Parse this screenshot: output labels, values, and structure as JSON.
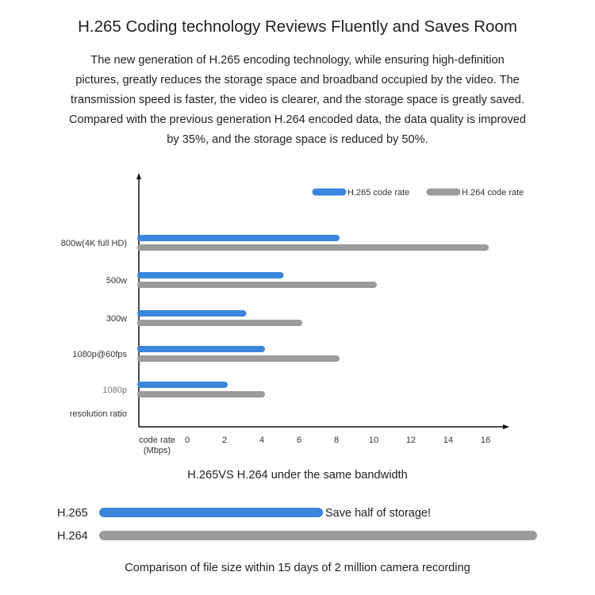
{
  "header": {
    "title": "H.265 Coding technology Reviews Fluently and Saves Room",
    "paragraph_lines": [
      "The new generation of H.265 encoding technology, while ensuring high-definition",
      "pictures, greatly reduces the storage space and broadband occupied by the video. The",
      "transmission speed is faster, the video is clearer, and the storage space is greatly saved.",
      "Compared with the previous generation H.264 encoded data, the data quality is improved",
      "by 35%, and the storage space is reduced by 50%."
    ]
  },
  "chart_data": [
    {
      "type": "bar",
      "orientation": "horizontal",
      "title": "H.265VS H.264 under the same bandwidth",
      "ylabel": "resolution ratio",
      "xlabel": "code rate (Mbps)",
      "xlabel_lines": [
        "code rate",
        "(Mbps)"
      ],
      "xticks": [
        0,
        2,
        4,
        6,
        8,
        10,
        12,
        14,
        16
      ],
      "xlim": [
        0,
        16
      ],
      "categories": [
        "800w(4K full HD)",
        "500w",
        "300w",
        "1080p@60fps",
        "1080p"
      ],
      "series": [
        {
          "name": "H.265 code rate",
          "color": "#3a86dc",
          "values": [
            8,
            5,
            3,
            4,
            2
          ]
        },
        {
          "name": "H.264 code rate",
          "color": "#9b9b9b",
          "values": [
            16,
            10,
            6,
            8,
            4
          ]
        }
      ],
      "legend_position": "top-right",
      "grid": false
    },
    {
      "type": "bar",
      "orientation": "horizontal",
      "title": "Comparison of file size within 15 days of 2 million camera recording",
      "categories": [
        "H.265",
        "H.264"
      ],
      "values": [
        0.5,
        1
      ],
      "colors": [
        "#3a86dc",
        "#9b9b9b"
      ],
      "annotation": "Save half of storage!"
    }
  ]
}
